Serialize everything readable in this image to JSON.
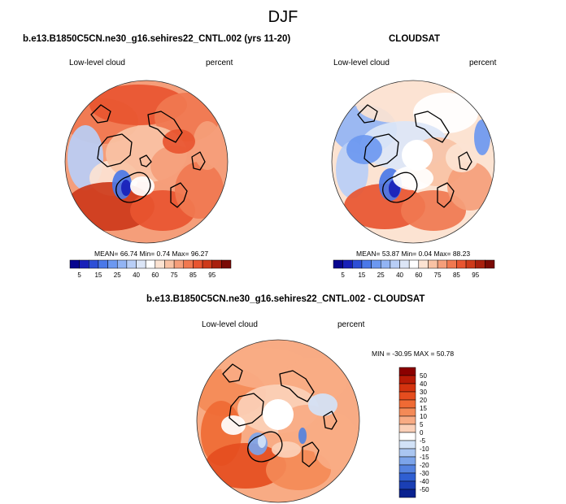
{
  "figure": {
    "title": "DJF",
    "bg": "#ffffff"
  },
  "chart_data": [
    {
      "type": "heatmap",
      "projection": "north-polar-stereographic",
      "title": "b.e13.B1850C5CN.ne30_g16.sehires22_CNTL.002 (yrs 11-20)",
      "left_label": "Low-level cloud",
      "right_label": "percent",
      "stats_text": "MEAN= 66.74 Min= 0.74 Max= 96.27",
      "mean": 66.74,
      "min": 0.74,
      "max": 96.27,
      "has_polar_gap": false,
      "colorbar": {
        "orientation": "horizontal",
        "levels": [
          5,
          10,
          15,
          20,
          25,
          30,
          40,
          50,
          60,
          65,
          70,
          75,
          80,
          85,
          90,
          95
        ],
        "tick_labels": [
          "5",
          "15",
          "25",
          "40",
          "60",
          "75",
          "85",
          "95"
        ],
        "colors": [
          "#08068f",
          "#1820b8",
          "#2d4fd6",
          "#4a78e8",
          "#6c98f0",
          "#92b4f4",
          "#b8cef6",
          "#dce6f7",
          "#ffffff",
          "#fce3d2",
          "#f9c2a4",
          "#f59e7a",
          "#f07850",
          "#e85530",
          "#cd3a1a",
          "#a8200e",
          "#7a0a05"
        ]
      }
    },
    {
      "type": "heatmap",
      "projection": "north-polar-stereographic",
      "title": "CLOUDSAT",
      "left_label": "Low-level cloud",
      "right_label": "percent",
      "stats_text": "MEAN= 53.87 Min= 0.04 Max= 88.23",
      "mean": 53.87,
      "min": 0.04,
      "max": 88.23,
      "has_polar_gap": true,
      "colorbar": {
        "orientation": "horizontal",
        "levels": [
          5,
          10,
          15,
          20,
          25,
          30,
          40,
          50,
          60,
          65,
          70,
          75,
          80,
          85,
          90,
          95
        ],
        "tick_labels": [
          "5",
          "15",
          "25",
          "40",
          "60",
          "75",
          "85",
          "95"
        ],
        "colors": [
          "#08068f",
          "#1820b8",
          "#2d4fd6",
          "#4a78e8",
          "#6c98f0",
          "#92b4f4",
          "#b8cef6",
          "#dce6f7",
          "#ffffff",
          "#fce3d2",
          "#f9c2a4",
          "#f59e7a",
          "#f07850",
          "#e85530",
          "#cd3a1a",
          "#a8200e",
          "#7a0a05"
        ]
      }
    },
    {
      "type": "heatmap",
      "projection": "north-polar-stereographic",
      "title": "b.e13.B1850C5CN.ne30_g16.sehires22_CNTL.002 - CLOUDSAT",
      "left_label": "Low-level cloud",
      "right_label": "percent",
      "stats_text": "MIN = -30.95 MAX = 50.78",
      "min": -30.95,
      "max": 50.78,
      "has_polar_gap": true,
      "colorbar": {
        "orientation": "vertical",
        "levels": [
          -50,
          -40,
          -30,
          -20,
          -15,
          -10,
          -5,
          0,
          5,
          10,
          15,
          20,
          30,
          40,
          50
        ],
        "tick_labels": [
          "50",
          "40",
          "30",
          "20",
          "15",
          "10",
          "5",
          "0",
          "-5",
          "-10",
          "-15",
          "-20",
          "-30",
          "-40",
          "-50"
        ],
        "colors": [
          "#8b0000",
          "#b81a06",
          "#d4330f",
          "#e54d1f",
          "#ef6a34",
          "#f48a57",
          "#f8ab84",
          "#fbd0b8",
          "#ffffff",
          "#d2e2f7",
          "#aac6f1",
          "#7ca4ea",
          "#5482e0",
          "#2f5fd2",
          "#1a3fb4",
          "#0a2290"
        ]
      }
    }
  ]
}
